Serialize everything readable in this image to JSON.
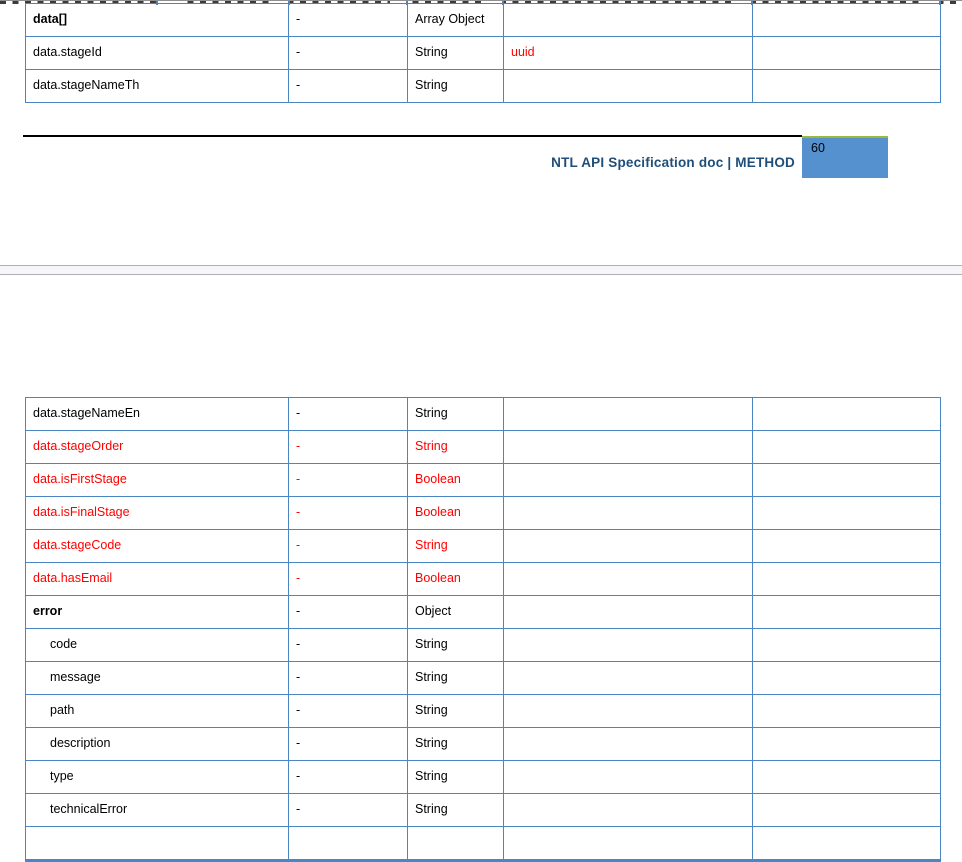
{
  "colors": {
    "table_border": "#4a86c4",
    "red_text": "#ff0000",
    "footer_navy": "#1f4e79",
    "page_box_blue": "#5591cf",
    "page_box_green_top": "#9ab83a"
  },
  "footer": {
    "doc_title": "NTL API Specification doc | METHOD",
    "page_number": "60"
  },
  "spec_table_top": {
    "rows": [
      {
        "name": "data[]",
        "required": "-",
        "type": "Array Object",
        "description": "",
        "remark": "",
        "bold": true
      },
      {
        "name": "data.stageId",
        "required": "-",
        "type": "String",
        "description": "uuid",
        "remark": "",
        "description_red": true
      },
      {
        "name": "data.stageNameTh",
        "required": "-",
        "type": "String",
        "description": "",
        "remark": ""
      }
    ]
  },
  "spec_table_bottom": {
    "rows": [
      {
        "name": "data.stageNameEn",
        "required": "-",
        "type": "String",
        "description": "",
        "remark": ""
      },
      {
        "name": "data.stageOrder",
        "required": "-",
        "type": "String",
        "description": "",
        "remark": "",
        "red": true
      },
      {
        "name": "data.isFirstStage",
        "required": "-",
        "type": "Boolean",
        "description": "",
        "remark": "",
        "red": true
      },
      {
        "name": "data.isFinalStage",
        "required": "-",
        "type": "Boolean",
        "description": "",
        "remark": "",
        "red": true
      },
      {
        "name": "data.stageCode",
        "required": "-",
        "type": "String",
        "description": "",
        "remark": "",
        "red": true
      },
      {
        "name": "data.hasEmail",
        "required": "-",
        "type": "Boolean",
        "description": "",
        "remark": "",
        "red": true
      },
      {
        "name": "error",
        "required": "-",
        "type": "Object",
        "description": "",
        "remark": "",
        "bold": true
      },
      {
        "name": "code",
        "required": "-",
        "type": "String",
        "description": "",
        "remark": "",
        "indent": true
      },
      {
        "name": "message",
        "required": "-",
        "type": "String",
        "description": "",
        "remark": "",
        "indent": true
      },
      {
        "name": "path",
        "required": "-",
        "type": "String",
        "description": "",
        "remark": "",
        "indent": true
      },
      {
        "name": "description",
        "required": "-",
        "type": "String",
        "description": "",
        "remark": "",
        "indent": true
      },
      {
        "name": "type",
        "required": "-",
        "type": "String",
        "description": "",
        "remark": "",
        "indent": true
      },
      {
        "name": "technicalError",
        "required": "-",
        "type": "String",
        "description": "",
        "remark": "",
        "indent": true
      },
      {
        "name": "",
        "required": "",
        "type": "",
        "description": "",
        "remark": "",
        "empty": true
      }
    ]
  }
}
